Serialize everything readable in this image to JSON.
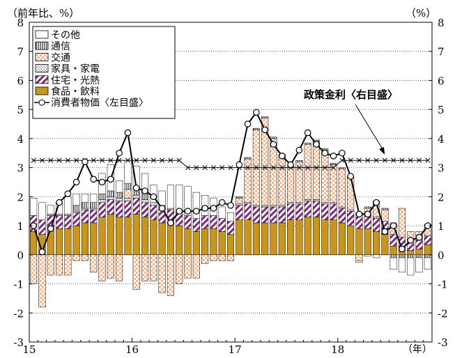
{
  "chart_data": {
    "type": "bar",
    "subtype": "stacked bar with line overlay",
    "title": "",
    "left_axis_label": "（前年比、%）",
    "right_axis_label": "（%）",
    "x_unit_label": "（年）",
    "ylim": [
      -3,
      8
    ],
    "yticks": [
      -3,
      -2,
      -1,
      0,
      1,
      2,
      3,
      4,
      5,
      6,
      7,
      8
    ],
    "right_ylim": [
      -3,
      8
    ],
    "right_yticks": [
      -3,
      -2,
      -1,
      0,
      1,
      2,
      3,
      4,
      5,
      6,
      7,
      8
    ],
    "x_year_labels": [
      {
        "label": "15",
        "month_index": 0
      },
      {
        "label": "16",
        "month_index": 12
      },
      {
        "label": "17",
        "month_index": 24
      },
      {
        "label": "18",
        "month_index": 36
      }
    ],
    "months": 47,
    "grid": "horizontal dotted",
    "legend_position": "top-left",
    "annotation": "政策金利〈右目盛〉",
    "series": [
      {
        "name": "その他",
        "color": "#ffffff",
        "values": [
          0.6,
          0.6,
          0.3,
          0.4,
          0.6,
          0.4,
          0.3,
          0.3,
          0.7,
          0.9,
          0.4,
          0.8,
          0.8,
          0.7,
          0.6,
          0.5,
          0.8,
          0.9,
          1.0,
          0.9,
          0.7,
          0.6,
          0.4,
          0.3,
          0,
          0,
          0,
          0,
          0,
          0,
          0,
          0,
          0,
          0,
          0,
          0,
          0,
          0,
          -0.05,
          -0.05,
          -0.1,
          0,
          -0.4,
          -0.5,
          -0.6,
          -0.5,
          -0.4
        ]
      },
      {
        "name": "通信",
        "color": "#ffffff",
        "values": [
          0,
          0,
          0,
          0,
          0,
          0.2,
          0.2,
          0.2,
          0.2,
          0.2,
          0.2,
          0.2,
          0.2,
          0.2,
          0,
          0,
          0,
          0,
          0,
          0,
          0,
          0,
          0,
          0,
          0.05,
          0.05,
          0.05,
          0.05,
          0.05,
          0.05,
          0.05,
          0.05,
          0.05,
          0.05,
          0.05,
          0.05,
          0.05,
          0.05,
          0.05,
          0.05,
          0.05,
          0.05,
          -0.1,
          -0.1,
          -0.1,
          -0.1,
          -0.1
        ]
      },
      {
        "name": "交通",
        "color": "#f2a074",
        "values": [
          -1.0,
          -1.8,
          -0.7,
          -0.7,
          -0.7,
          -0.2,
          -0.2,
          -0.6,
          -0.9,
          -0.8,
          -0.9,
          0.3,
          -1.2,
          -0.9,
          -0.9,
          -1.3,
          -1.4,
          -1.0,
          -0.8,
          -0.8,
          -0.3,
          -0.2,
          -0.2,
          -0.2,
          0.2,
          1.5,
          2.6,
          3.0,
          2.3,
          1.7,
          1.2,
          1.4,
          1.9,
          2.0,
          1.8,
          1.3,
          1.3,
          1.1,
          -0.2,
          0.2,
          0.5,
          0.4,
          0.4,
          1.0,
          0.3,
          0.3,
          0.4
        ]
      },
      {
        "name": "家具・家電",
        "color": "#ffffff",
        "values": [
          0,
          0,
          0.05,
          0.05,
          0.05,
          0.05,
          0.05,
          0.05,
          0.1,
          0.1,
          0.1,
          0.1,
          0.1,
          0.1,
          0.1,
          0.1,
          0.05,
          0.05,
          0,
          0,
          0,
          0,
          0,
          0,
          0.05,
          0.05,
          0.05,
          0.05,
          0.05,
          0.05,
          0.05,
          0.05,
          0.05,
          0.05,
          0.05,
          0.05,
          0.05,
          0.05,
          0.05,
          0.05,
          0.05,
          0,
          0,
          0,
          0,
          0,
          0
        ]
      },
      {
        "name": "住宅・光熱",
        "color": "#ffffff",
        "values": [
          0.55,
          0.5,
          0.45,
          0.45,
          0.45,
          0.45,
          0.45,
          0.45,
          0.5,
          0.5,
          0.55,
          0.55,
          0.55,
          0.5,
          0.5,
          0.5,
          0.45,
          0.45,
          0.45,
          0.45,
          0.45,
          0.45,
          0.45,
          0.45,
          0.5,
          0.55,
          0.55,
          0.55,
          0.55,
          0.55,
          0.55,
          0.55,
          0.55,
          0.55,
          0.55,
          0.55,
          0.5,
          0.5,
          0.45,
          0.45,
          0.45,
          0.45,
          0.4,
          0.4,
          0.35,
          0.3,
          0.3
        ]
      },
      {
        "name": "食品・飲料",
        "color": "#c8961a",
        "values": [
          0.8,
          0.7,
          0.9,
          0.9,
          0.9,
          1.0,
          1.1,
          1.1,
          1.3,
          1.4,
          1.3,
          1.3,
          1.4,
          1.3,
          1.2,
          1.1,
          1.1,
          1.0,
          0.9,
          0.8,
          0.9,
          0.9,
          0.8,
          0.7,
          1.2,
          1.2,
          1.1,
          1.1,
          1.1,
          1.1,
          1.2,
          1.2,
          1.3,
          1.3,
          1.2,
          1.2,
          1.1,
          1.0,
          0.9,
          0.9,
          0.8,
          0.7,
          0.3,
          0.2,
          0.15,
          0.2,
          0.35
        ]
      }
    ],
    "line_series": [
      {
        "name": "消費者物価〈左目盛〉",
        "values": [
          1.0,
          0.1,
          0.9,
          1.8,
          2.1,
          2.5,
          3.2,
          2.6,
          2.5,
          2.6,
          3.5,
          4.2,
          2.3,
          2.2,
          2.0,
          1.6,
          1.1,
          1.5,
          1.5,
          1.5,
          1.6,
          1.6,
          1.8,
          1.7,
          3.1,
          4.5,
          4.9,
          4.3,
          3.8,
          3.4,
          3.1,
          3.6,
          4.2,
          3.8,
          3.5,
          3.4,
          3.5,
          2.7,
          1.4,
          1.4,
          1.8,
          0.8,
          1.0,
          0.2,
          0.5,
          0.6,
          1.0
        ]
      },
      {
        "name": "政策金利〈右目盛〉",
        "values": [
          3.25,
          3.25,
          3.25,
          3.25,
          3.25,
          3.25,
          3.25,
          3.25,
          3.25,
          3.25,
          3.25,
          3.25,
          3.25,
          3.25,
          3.25,
          3.25,
          3.25,
          3.25,
          3.0,
          3.0,
          3.0,
          3.0,
          3.0,
          3.0,
          3.0,
          3.0,
          3.0,
          3.0,
          3.0,
          3.0,
          3.0,
          3.0,
          3.0,
          3.0,
          3.0,
          3.0,
          3.25,
          3.25,
          3.25,
          3.25,
          3.25,
          3.25,
          3.25,
          3.25,
          3.25,
          3.25,
          3.25
        ]
      }
    ]
  }
}
